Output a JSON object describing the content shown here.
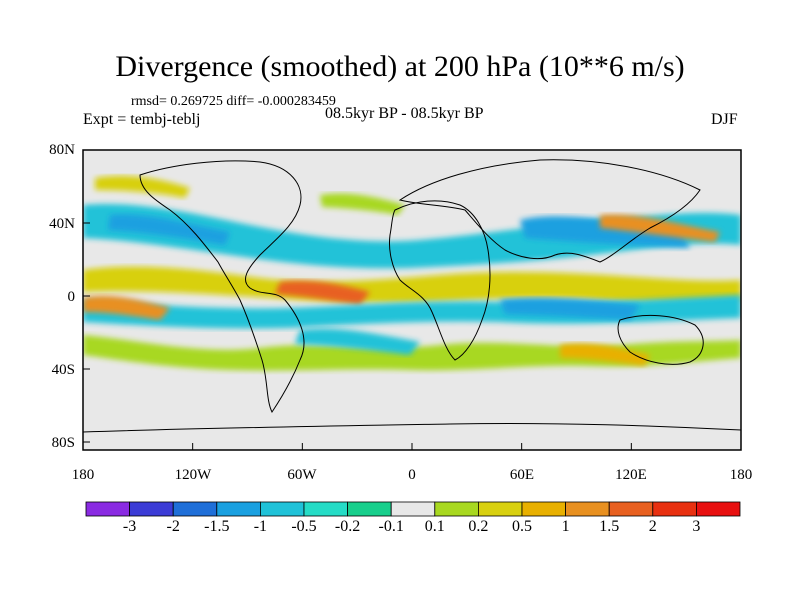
{
  "title": "Divergence (smoothed) at 200 hPa (10**6 m/s)",
  "stats": "rmsd= 0.269725 diff= -0.000283459",
  "experiment": "Expt = tembj-teblj",
  "period": "08.5kyr BP - 08.5kyr BP",
  "season": "DJF",
  "lat_labels": [
    "80N",
    "40N",
    "0",
    "40S",
    "80S"
  ],
  "lon_labels": [
    "180",
    "120W",
    "60W",
    "0",
    "60E",
    "120E",
    "180"
  ],
  "colorbar": {
    "labels": [
      "-3",
      "-2",
      "-1.5",
      "-1",
      "-0.5",
      "-0.2",
      "-0.1",
      "0.1",
      "0.2",
      "0.5",
      "1",
      "1.5",
      "2",
      "3"
    ],
    "colors": [
      "#8a2be2",
      "#3c3cd6",
      "#1f6fd8",
      "#1aa0e0",
      "#20c2d8",
      "#25dcc6",
      "#18cf8c",
      "#e8e8e8",
      "#a8d820",
      "#d8d010",
      "#e8b000",
      "#e89020",
      "#e86020",
      "#e83010",
      "#e81010"
    ]
  },
  "land_color": "#e8e8e8"
}
